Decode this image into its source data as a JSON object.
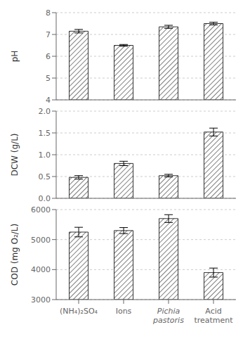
{
  "chart_data": [
    {
      "type": "bar",
      "categories": [
        null,
        null,
        null,
        null
      ],
      "values": [
        7.15,
        6.5,
        7.35,
        7.5
      ],
      "errors": [
        0.08,
        0.04,
        0.07,
        0.06
      ],
      "ylabel": "pH",
      "ylim": [
        4,
        8
      ],
      "yticks": [
        4,
        5,
        6,
        7,
        8
      ],
      "color": "white",
      "tick_labels": "y"
    },
    {
      "type": "bar",
      "categories": [
        null,
        null,
        null,
        null
      ],
      "values": [
        0.48,
        0.8,
        0.52,
        1.52
      ],
      "errors": [
        0.04,
        0.05,
        0.03,
        0.09
      ],
      "ylabel": "DCW (g/L)",
      "ylim": [
        0.0,
        2.0
      ],
      "yticks": [
        {
          "value": 0,
          "label": "0.0"
        },
        {
          "value": 0.5,
          "label": "0.5"
        },
        {
          "value": 1,
          "label": "1.0"
        },
        {
          "value": 1.5,
          "label": "1.5"
        },
        {
          "value": 2,
          "label": "2.0"
        }
      ],
      "color": "white",
      "tick_labels": "y"
    },
    {
      "type": "bar",
      "categories": [
        "(NH₄)₂SO₄",
        "Ions",
        "Pichia\npastoris",
        "Acid\ntreatment"
      ],
      "values": [
        5250,
        5300,
        5700,
        3900
      ],
      "errors": [
        160,
        100,
        130,
        150
      ],
      "ylabel": "COD (mg O₂/L)",
      "ylim": [
        3000,
        6000
      ],
      "yticks": [
        3000,
        4000,
        5000,
        6000
      ],
      "color": "white"
    }
  ]
}
